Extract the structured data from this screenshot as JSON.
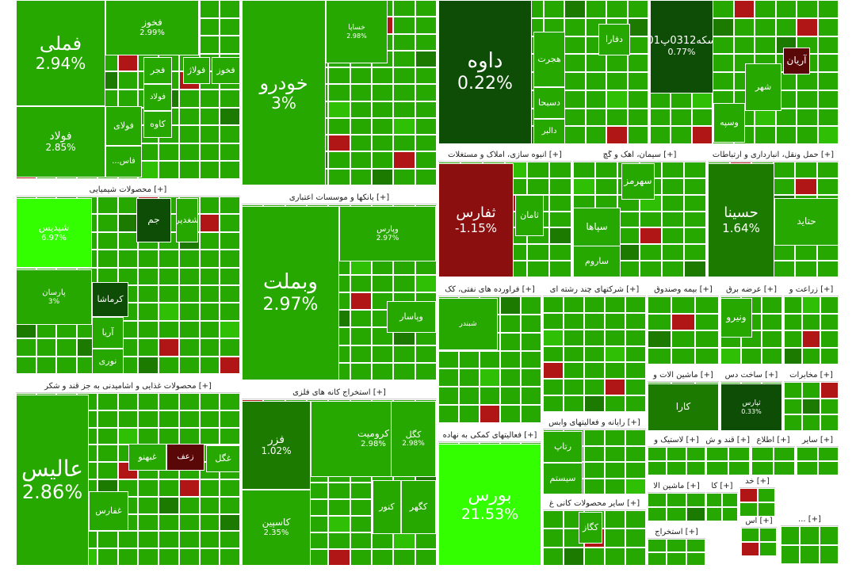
{
  "chart_data": {
    "type": "treemap",
    "colors": {
      "up_bright": "#33ff00",
      "up": "#26a800",
      "up_light": "#2fbf05",
      "up_dark": "#1d7a00",
      "up_darker": "#0e4d05",
      "down": "#8b0f0f",
      "down_dark": "#5a0707",
      "down_light": "#b01616"
    },
    "sectors": [
      {
        "name": "",
        "tiles": [
          {
            "name": "فملی",
            "change": "2.94%",
            "shade": "up",
            "size": "xl"
          },
          {
            "name": "فولاد",
            "change": "2.85%",
            "shade": "up",
            "size": "m"
          },
          {
            "name": "فخوز",
            "change": "2.99%",
            "shade": "up",
            "size": "s"
          },
          {
            "name": "فجر",
            "change": "",
            "shade": "up",
            "size": "s"
          },
          {
            "name": "فولاژ",
            "change": "",
            "shade": "up",
            "size": "s"
          },
          {
            "name": "فخوز",
            "change": "",
            "shade": "up",
            "size": "s"
          },
          {
            "name": "فولاد",
            "change": "",
            "shade": "up",
            "size": "xs"
          },
          {
            "name": "فولای",
            "change": "",
            "shade": "up",
            "size": "s"
          },
          {
            "name": "کاوه",
            "change": "",
            "shade": "up",
            "size": "s"
          },
          {
            "name": "فاس...",
            "change": "",
            "shade": "up",
            "size": "xs"
          }
        ]
      },
      {
        "name": "محصولات شیمیایی",
        "tiles": [
          {
            "name": "شپدیس",
            "change": "6.97%",
            "shade": "up_bright",
            "size": "s"
          },
          {
            "name": "پارسان",
            "change": "3%",
            "shade": "up",
            "size": "xs"
          },
          {
            "name": "جم",
            "change": "",
            "shade": "up_darker",
            "size": "s"
          },
          {
            "name": "شغدیر",
            "change": "",
            "shade": "up",
            "size": "s"
          },
          {
            "name": "کرماشا",
            "change": "",
            "shade": "up_darker",
            "size": "s"
          },
          {
            "name": "نوری",
            "change": "",
            "shade": "up",
            "size": "s"
          },
          {
            "name": "آریا",
            "change": "",
            "shade": "up",
            "size": "s"
          }
        ]
      },
      {
        "name": "محصولات غذایی و آشامیدنی به جز قند و شکر",
        "tiles": [
          {
            "name": "عالیس",
            "change": "2.86%",
            "shade": "up",
            "size": "xl"
          },
          {
            "name": "غفارس",
            "change": "",
            "shade": "up",
            "size": "s"
          },
          {
            "name": "غبهنو",
            "change": "",
            "shade": "up",
            "size": "s"
          },
          {
            "name": "غگل",
            "change": "",
            "shade": "up",
            "size": "s"
          },
          {
            "name": "زعف",
            "change": "",
            "shade": "down_dark",
            "size": "s"
          }
        ]
      },
      {
        "name": "",
        "tiles": [
          {
            "name": "خودرو",
            "change": "3%",
            "shade": "up",
            "size": "xl"
          },
          {
            "name": "خساپا",
            "change": "2.98%",
            "shade": "up",
            "size": "xs"
          }
        ]
      },
      {
        "name": "بانکها و موسسات اعتباری",
        "tiles": [
          {
            "name": "وبملت",
            "change": "2.97%",
            "shade": "up",
            "size": "xl"
          },
          {
            "name": "وپارس",
            "change": "2.97%",
            "shade": "up",
            "size": "xs"
          },
          {
            "name": "وپاسار",
            "change": "",
            "shade": "up",
            "size": "s"
          }
        ]
      },
      {
        "name": "استخراج کانه های فلزی",
        "tiles": [
          {
            "name": "فزر",
            "change": "1.02%",
            "shade": "up_dark",
            "size": "m"
          },
          {
            "name": "کروميت",
            "change": "2.98%",
            "shade": "up",
            "size": "s"
          },
          {
            "name": "کگل",
            "change": "2.98%",
            "shade": "up",
            "size": "s"
          },
          {
            "name": "کاسپین",
            "change": "2.35%",
            "shade": "up",
            "size": "s"
          },
          {
            "name": "کنور",
            "change": "",
            "shade": "up",
            "size": "s"
          },
          {
            "name": "کگهر",
            "change": "",
            "shade": "up",
            "size": "s"
          }
        ]
      },
      {
        "name": "",
        "tiles": [
          {
            "name": "داوه",
            "change": "0.22%",
            "shade": "up_darker",
            "size": "xl"
          },
          {
            "name": "دفارا",
            "change": "",
            "shade": "up",
            "size": "s"
          },
          {
            "name": "هجرت",
            "change": "",
            "shade": "up",
            "size": "s"
          },
          {
            "name": "دسبحا",
            "change": "",
            "shade": "up",
            "size": "s"
          },
          {
            "name": "دالبر",
            "change": "",
            "shade": "up",
            "size": "s"
          }
        ]
      },
      {
        "name": "انبوه سازی، املاک و مستغلات",
        "tiles": [
          {
            "name": "ثفارس",
            "change": "-1.15%",
            "shade": "down",
            "size": "xl"
          },
          {
            "name": "ثامان",
            "change": "",
            "shade": "up",
            "size": "s"
          }
        ]
      },
      {
        "name": "فراورده های نفتی، کک",
        "tiles": [
          {
            "name": "شبندر",
            "change": "",
            "shade": "up",
            "size": "xs"
          }
        ]
      },
      {
        "name": "فعالیتهای کمکی به نهاده",
        "tiles": [
          {
            "name": "بورس",
            "change": "21.53%",
            "shade": "up_bright",
            "size": "xl"
          }
        ]
      },
      {
        "name": "",
        "tiles": [
          {
            "name": "سکه0312پ01",
            "change": "0.77%",
            "shade": "up_darker",
            "size": "m"
          },
          {
            "name": "آریان",
            "change": "",
            "shade": "down_dark",
            "size": "s"
          },
          {
            "name": "شهر",
            "change": "",
            "shade": "up",
            "size": "s"
          },
          {
            "name": "وسپه",
            "change": "",
            "shade": "up",
            "size": "s"
          }
        ]
      },
      {
        "name": "سیمان، آهک و گچ",
        "tiles": [
          {
            "name": "سهرمز",
            "change": "",
            "shade": "up",
            "size": "s"
          },
          {
            "name": "سپاها",
            "change": "",
            "shade": "up",
            "size": "s"
          },
          {
            "name": "ساروم",
            "change": "",
            "shade": "up",
            "size": "s"
          }
        ]
      },
      {
        "name": "حمل ونقل، انبارداری و ارتباطات",
        "tiles": [
          {
            "name": "حسینا",
            "change": "1.64%",
            "shade": "up_dark",
            "size": "m"
          },
          {
            "name": "حتاید",
            "change": "",
            "shade": "up",
            "size": "s"
          }
        ]
      },
      {
        "name": "شرکتهای چند رشته ای",
        "tiles": []
      },
      {
        "name": "بیمه وصندوق",
        "tiles": []
      },
      {
        "name": "عرضه برق",
        "tiles": [
          {
            "name": "ونیرو",
            "change": "",
            "shade": "up",
            "size": "s"
          }
        ]
      },
      {
        "name": "زراعت و",
        "tiles": []
      },
      {
        "name": "ماشین آلات و",
        "tiles": [
          {
            "name": "کارا",
            "change": "",
            "shade": "up_dark",
            "size": "s"
          }
        ]
      },
      {
        "name": "ساخت دس",
        "tiles": [
          {
            "name": "ثپارس",
            "change": "0.33%",
            "shade": "up_darker",
            "size": "xs"
          }
        ]
      },
      {
        "name": "مخابرات",
        "tiles": []
      },
      {
        "name": "رایانه و فعالیتهای وابس",
        "tiles": [
          {
            "name": "رتاپ",
            "change": "",
            "shade": "up",
            "size": "s"
          },
          {
            "name": "سیستم",
            "change": "",
            "shade": "up",
            "size": "s"
          }
        ]
      },
      {
        "name": "سایر محصولات کانی غ",
        "tiles": [
          {
            "name": "کگاز",
            "change": "",
            "shade": "up",
            "size": "s"
          }
        ]
      },
      {
        "name": "لاستیک و",
        "tiles": []
      },
      {
        "name": "قند و ش",
        "tiles": []
      },
      {
        "name": "اطلاع",
        "tiles": []
      },
      {
        "name": "سایر",
        "tiles": []
      },
      {
        "name": "ماشین آلا",
        "tiles": []
      },
      {
        "name": "کا",
        "tiles": []
      },
      {
        "name": "خد",
        "tiles": []
      },
      {
        "name": "استخراج",
        "tiles": []
      },
      {
        "name": "اس",
        "tiles": []
      },
      {
        "name": "...",
        "tiles": []
      }
    ]
  }
}
